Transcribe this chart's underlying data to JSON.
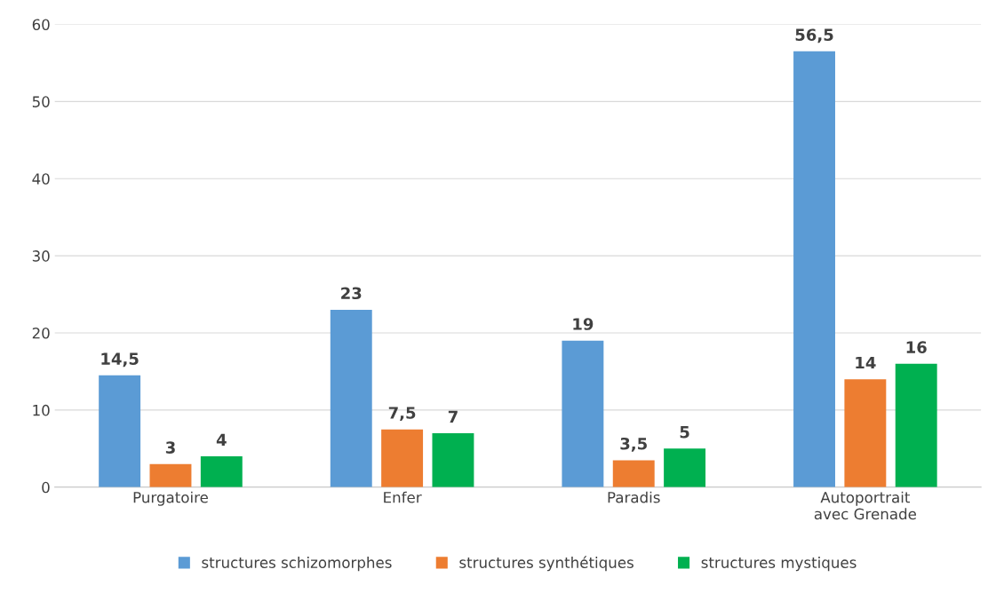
{
  "chart_data": {
    "type": "bar",
    "categories": [
      "Purgatoire",
      "Enfer",
      "Paradis",
      "Autoportrait avec Grenade"
    ],
    "series": [
      {
        "name": "structures schizomorphes",
        "color": "#5b9bd5",
        "values": [
          14.5,
          23,
          19,
          56.5
        ],
        "value_labels": [
          "14,5",
          "23",
          "19",
          "56,5"
        ]
      },
      {
        "name": "structures synthétiques",
        "color": "#ed7d31",
        "values": [
          3,
          7.5,
          3.5,
          14
        ],
        "value_labels": [
          "3",
          "7,5",
          "3,5",
          "14"
        ]
      },
      {
        "name": "structures mystiques",
        "color": "#00b050",
        "values": [
          4,
          7,
          5,
          16
        ],
        "value_labels": [
          "4",
          "7",
          "5",
          "16"
        ]
      }
    ],
    "ylim": [
      0,
      60
    ],
    "yticks": [
      0,
      10,
      20,
      30,
      40,
      50,
      60
    ],
    "grid": "y",
    "legend": "bottom"
  }
}
